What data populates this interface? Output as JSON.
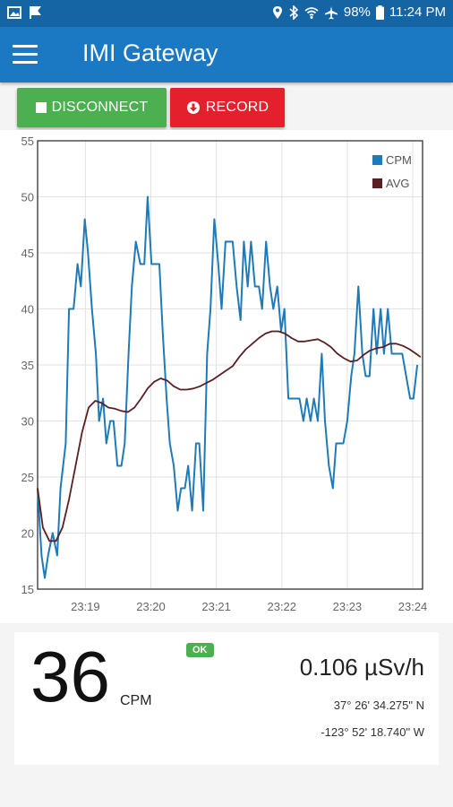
{
  "status_bar": {
    "battery": "98%",
    "time": "11:24 PM",
    "icons": [
      "image-icon",
      "flag-icon",
      "location-icon",
      "bluetooth-icon",
      "wifi-icon",
      "airplane-icon",
      "battery-icon"
    ]
  },
  "app": {
    "title": "IMI Gateway"
  },
  "buttons": {
    "disconnect": "DISCONNECT",
    "record": "RECORD"
  },
  "colors": {
    "app_bar": "#1b78c2",
    "status_bar": "#1565a5",
    "disconnect": "#4caf50",
    "record": "#e5202d",
    "cpm_line": "#1f7ab8",
    "avg_line": "#5a1f22"
  },
  "chart_data": {
    "type": "line",
    "x_tick_labels": [
      "23:19",
      "23:20",
      "23:21",
      "23:22",
      "23:23",
      "23:24"
    ],
    "x_ticks_minutes": [
      19,
      20,
      21,
      22,
      23,
      24
    ],
    "xlim": [
      18.27,
      24.15
    ],
    "ylim": [
      15,
      55
    ],
    "y_ticks": [
      15,
      20,
      25,
      30,
      35,
      40,
      45,
      50,
      55
    ],
    "grid": true,
    "legend_placement": "top-right",
    "series": [
      {
        "name": "CPM",
        "color": "#1f7ab8",
        "points": [
          [
            18.27,
            24
          ],
          [
            18.33,
            18
          ],
          [
            18.38,
            16
          ],
          [
            18.43,
            18
          ],
          [
            18.5,
            20
          ],
          [
            18.57,
            18
          ],
          [
            18.62,
            24
          ],
          [
            18.7,
            28
          ],
          [
            18.75,
            40
          ],
          [
            18.82,
            40
          ],
          [
            18.88,
            44
          ],
          [
            18.93,
            42
          ],
          [
            18.99,
            48
          ],
          [
            19.04,
            45
          ],
          [
            19.1,
            40
          ],
          [
            19.16,
            36
          ],
          [
            19.21,
            30
          ],
          [
            19.27,
            32
          ],
          [
            19.32,
            28
          ],
          [
            19.38,
            30
          ],
          [
            19.43,
            30
          ],
          [
            19.49,
            26
          ],
          [
            19.55,
            26
          ],
          [
            19.6,
            28
          ],
          [
            19.66,
            36
          ],
          [
            19.71,
            42
          ],
          [
            19.77,
            46
          ],
          [
            19.84,
            44
          ],
          [
            19.9,
            44
          ],
          [
            19.95,
            50
          ],
          [
            20.01,
            44
          ],
          [
            20.07,
            44
          ],
          [
            20.13,
            44
          ],
          [
            20.18,
            38
          ],
          [
            20.24,
            32
          ],
          [
            20.29,
            28
          ],
          [
            20.35,
            26
          ],
          [
            20.41,
            22
          ],
          [
            20.46,
            24
          ],
          [
            20.52,
            24
          ],
          [
            20.57,
            26
          ],
          [
            20.63,
            22
          ],
          [
            20.69,
            28
          ],
          [
            20.74,
            28
          ],
          [
            20.8,
            22
          ],
          [
            20.86,
            36
          ],
          [
            20.91,
            40
          ],
          [
            20.97,
            48
          ],
          [
            21.03,
            44
          ],
          [
            21.08,
            40
          ],
          [
            21.14,
            46
          ],
          [
            21.2,
            46
          ],
          [
            21.25,
            46
          ],
          [
            21.31,
            42
          ],
          [
            21.37,
            39
          ],
          [
            21.42,
            46
          ],
          [
            21.48,
            42
          ],
          [
            21.53,
            46
          ],
          [
            21.59,
            42
          ],
          [
            21.65,
            42
          ],
          [
            21.7,
            40
          ],
          [
            21.76,
            46
          ],
          [
            21.82,
            42
          ],
          [
            21.87,
            40
          ],
          [
            21.93,
            42
          ],
          [
            21.99,
            38
          ],
          [
            22.04,
            40
          ],
          [
            22.1,
            32
          ],
          [
            22.16,
            32
          ],
          [
            22.21,
            32
          ],
          [
            22.27,
            32
          ],
          [
            22.33,
            30
          ],
          [
            22.38,
            32
          ],
          [
            22.44,
            30
          ],
          [
            22.49,
            32
          ],
          [
            22.55,
            30
          ],
          [
            22.61,
            36
          ],
          [
            22.66,
            30
          ],
          [
            22.72,
            26
          ],
          [
            22.78,
            24
          ],
          [
            22.83,
            28
          ],
          [
            22.89,
            28
          ],
          [
            22.94,
            28
          ],
          [
            23.0,
            30
          ],
          [
            23.06,
            34
          ],
          [
            23.11,
            36
          ],
          [
            23.17,
            42
          ],
          [
            23.23,
            36
          ],
          [
            23.28,
            34
          ],
          [
            23.34,
            34
          ],
          [
            23.4,
            40
          ],
          [
            23.45,
            36
          ],
          [
            23.51,
            40
          ],
          [
            23.56,
            36
          ],
          [
            23.62,
            40
          ],
          [
            23.68,
            36
          ],
          [
            23.73,
            36
          ],
          [
            23.79,
            36
          ],
          [
            23.84,
            36
          ],
          [
            23.9,
            34
          ],
          [
            23.96,
            32
          ],
          [
            24.01,
            32
          ],
          [
            24.07,
            35
          ]
        ]
      },
      {
        "name": "AVG",
        "color": "#5a1f22",
        "points": [
          [
            18.27,
            24
          ],
          [
            18.35,
            20.5
          ],
          [
            18.45,
            19.3
          ],
          [
            18.55,
            19.3
          ],
          [
            18.65,
            20.5
          ],
          [
            18.75,
            23
          ],
          [
            18.85,
            26
          ],
          [
            18.95,
            29
          ],
          [
            19.05,
            31.2
          ],
          [
            19.15,
            31.8
          ],
          [
            19.25,
            31.6
          ],
          [
            19.35,
            31.2
          ],
          [
            19.45,
            31.1
          ],
          [
            19.55,
            30.9
          ],
          [
            19.65,
            30.8
          ],
          [
            19.75,
            31.2
          ],
          [
            19.85,
            32
          ],
          [
            19.95,
            32.9
          ],
          [
            20.05,
            33.5
          ],
          [
            20.15,
            33.8
          ],
          [
            20.25,
            33.6
          ],
          [
            20.35,
            33.1
          ],
          [
            20.45,
            32.8
          ],
          [
            20.55,
            32.8
          ],
          [
            20.65,
            32.9
          ],
          [
            20.75,
            33.1
          ],
          [
            20.85,
            33.4
          ],
          [
            20.95,
            33.7
          ],
          [
            21.05,
            34.1
          ],
          [
            21.15,
            34.5
          ],
          [
            21.25,
            34.9
          ],
          [
            21.35,
            35.7
          ],
          [
            21.45,
            36.4
          ],
          [
            21.55,
            36.9
          ],
          [
            21.65,
            37.4
          ],
          [
            21.75,
            37.8
          ],
          [
            21.85,
            38
          ],
          [
            21.95,
            38
          ],
          [
            22.05,
            37.8
          ],
          [
            22.15,
            37.4
          ],
          [
            22.25,
            37.1
          ],
          [
            22.35,
            37.1
          ],
          [
            22.45,
            37.2
          ],
          [
            22.55,
            37.3
          ],
          [
            22.65,
            37
          ],
          [
            22.75,
            36.6
          ],
          [
            22.85,
            36
          ],
          [
            22.95,
            35.6
          ],
          [
            23.05,
            35.3
          ],
          [
            23.15,
            35.4
          ],
          [
            23.25,
            35.9
          ],
          [
            23.35,
            36.3
          ],
          [
            23.45,
            36.5
          ],
          [
            23.55,
            36.6
          ],
          [
            23.65,
            36.9
          ],
          [
            23.75,
            36.9
          ],
          [
            23.85,
            36.7
          ],
          [
            23.95,
            36.4
          ],
          [
            24.05,
            36
          ],
          [
            24.12,
            35.7
          ]
        ]
      }
    ]
  },
  "readout": {
    "cpm_value": "36",
    "cpm_unit": "CPM",
    "status": "OK",
    "dose_rate": "0.106 µSv/h",
    "latitude": "37° 26' 34.275\" N",
    "longitude": "-123° 52' 18.740\" W"
  }
}
